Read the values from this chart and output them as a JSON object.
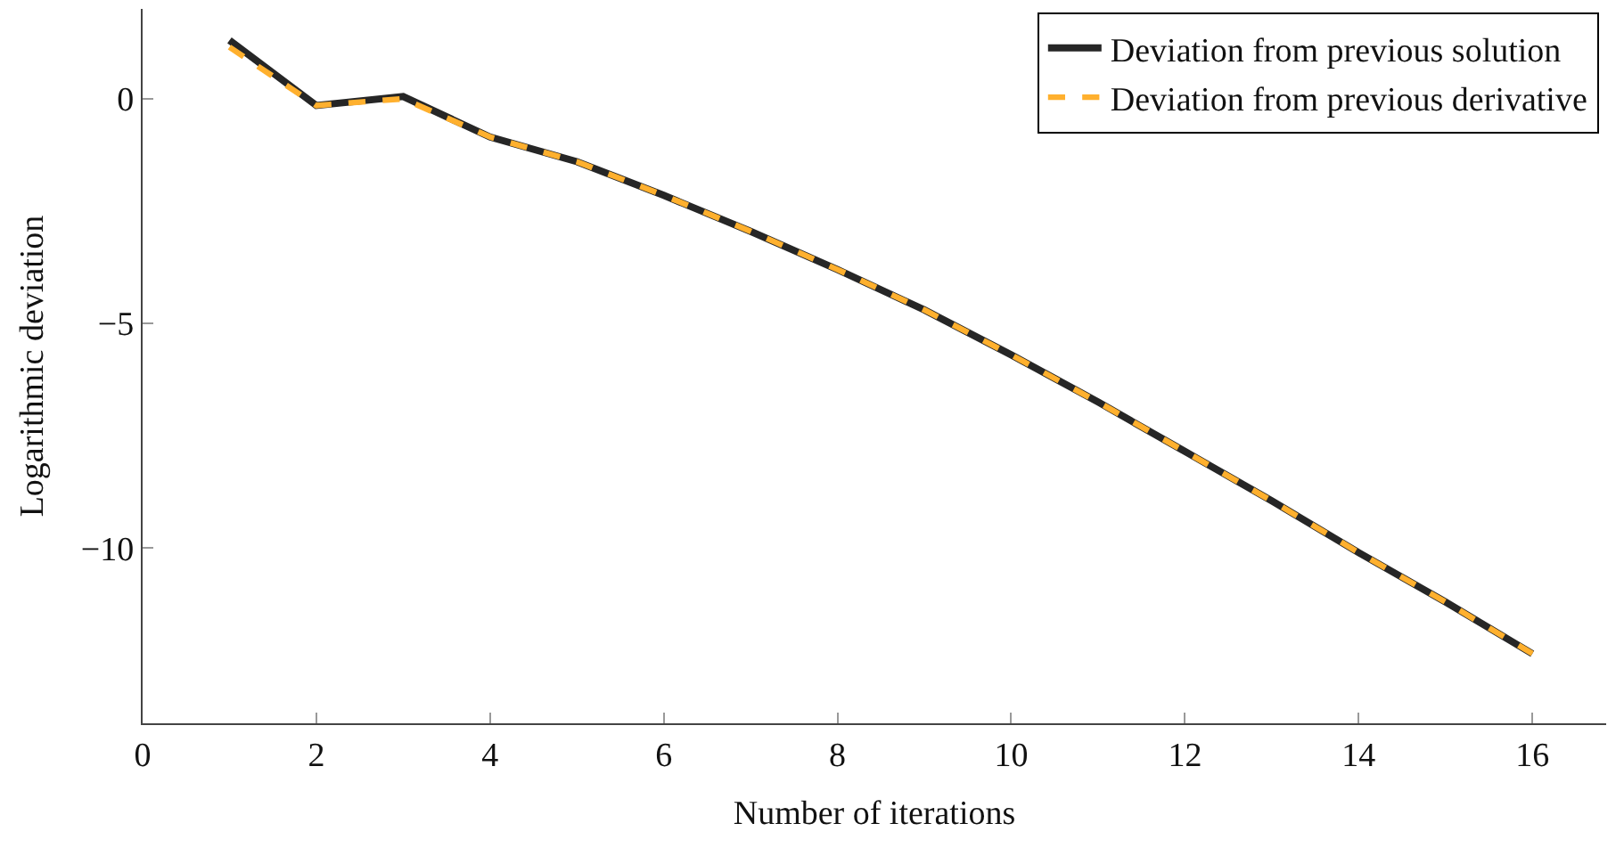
{
  "chart_data": {
    "type": "line",
    "xlabel": "Number of iterations",
    "ylabel": "Logarithmic deviation",
    "x": [
      1,
      2,
      3,
      4,
      5,
      6,
      7,
      8,
      9,
      10,
      11,
      12,
      13,
      14,
      15,
      16
    ],
    "series": [
      {
        "name": "Deviation from previous solution",
        "color": "#262626",
        "line_style": "solid",
        "values": [
          1.3,
          -0.15,
          0.05,
          -0.85,
          -1.4,
          -2.15,
          -2.95,
          -3.8,
          -4.7,
          -5.7,
          -6.75,
          -7.85,
          -8.95,
          -10.1,
          -11.2,
          -12.35
        ]
      },
      {
        "name": "Deviation from previous derivative",
        "color": "#ffb02e",
        "line_style": "dashed",
        "values": [
          1.15,
          -0.15,
          0.0,
          -0.85,
          -1.4,
          -2.15,
          -2.95,
          -3.8,
          -4.7,
          -5.7,
          -6.75,
          -7.85,
          -8.95,
          -10.1,
          -11.2,
          -12.35
        ]
      }
    ],
    "xlim": [
      0,
      16.85
    ],
    "xticks": [
      0,
      2,
      4,
      6,
      8,
      10,
      12,
      14,
      16
    ],
    "ylim": [
      -13.9,
      2.0
    ],
    "yticks": [
      {
        "value": -10,
        "label": "−10"
      },
      {
        "value": -5,
        "label": "−5"
      },
      0
    ],
    "legend": "top right",
    "marker": "none"
  }
}
